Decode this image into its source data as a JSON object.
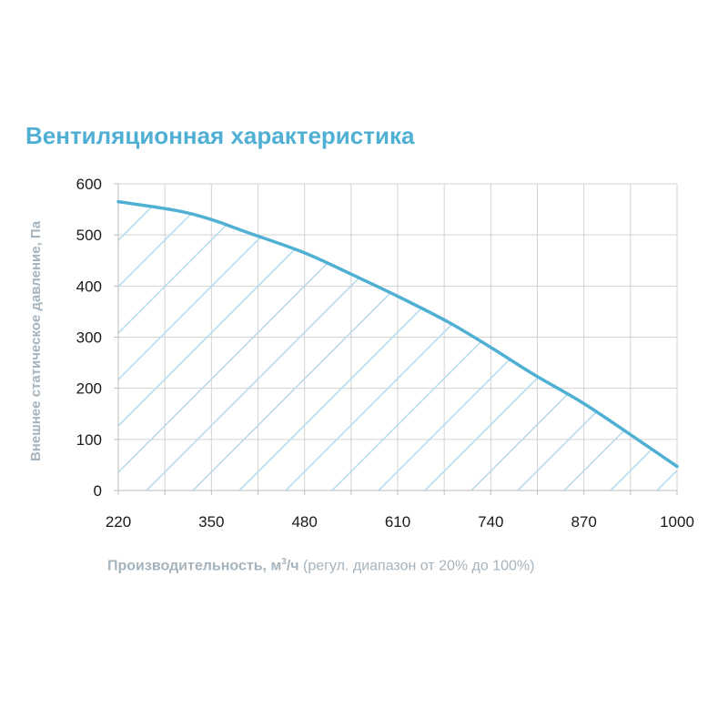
{
  "chart_data": {
    "type": "area",
    "title": "Вентиляционная характеристика",
    "ylabel": "Внешнее статическое давление, Па",
    "xlabel": {
      "main": "Производительность, м",
      "sup": "3",
      "unit": "/ч",
      "note": " (регул. диапазон от 20% до 100%)"
    },
    "xlim": [
      220,
      1000
    ],
    "ylim": [
      0,
      600
    ],
    "xticks": [
      220,
      350,
      480,
      610,
      740,
      870,
      1000
    ],
    "yticks": [
      0,
      100,
      200,
      300,
      400,
      500,
      600
    ],
    "grid": true,
    "fill": "diagonal-hatch",
    "colors": {
      "line": "#4fb0d4",
      "hatch": "#b9dbeb",
      "grid": "#d3d3d3",
      "title": "#4fb0d4",
      "label": "#a5b3bd"
    },
    "series": [
      {
        "x": [
          220,
          300,
          350,
          400,
          480,
          550,
          610,
          680,
          740,
          800,
          870,
          950,
          1000
        ],
        "y": [
          565,
          548,
          530,
          505,
          465,
          420,
          380,
          330,
          280,
          227,
          170,
          95,
          47
        ]
      }
    ]
  }
}
